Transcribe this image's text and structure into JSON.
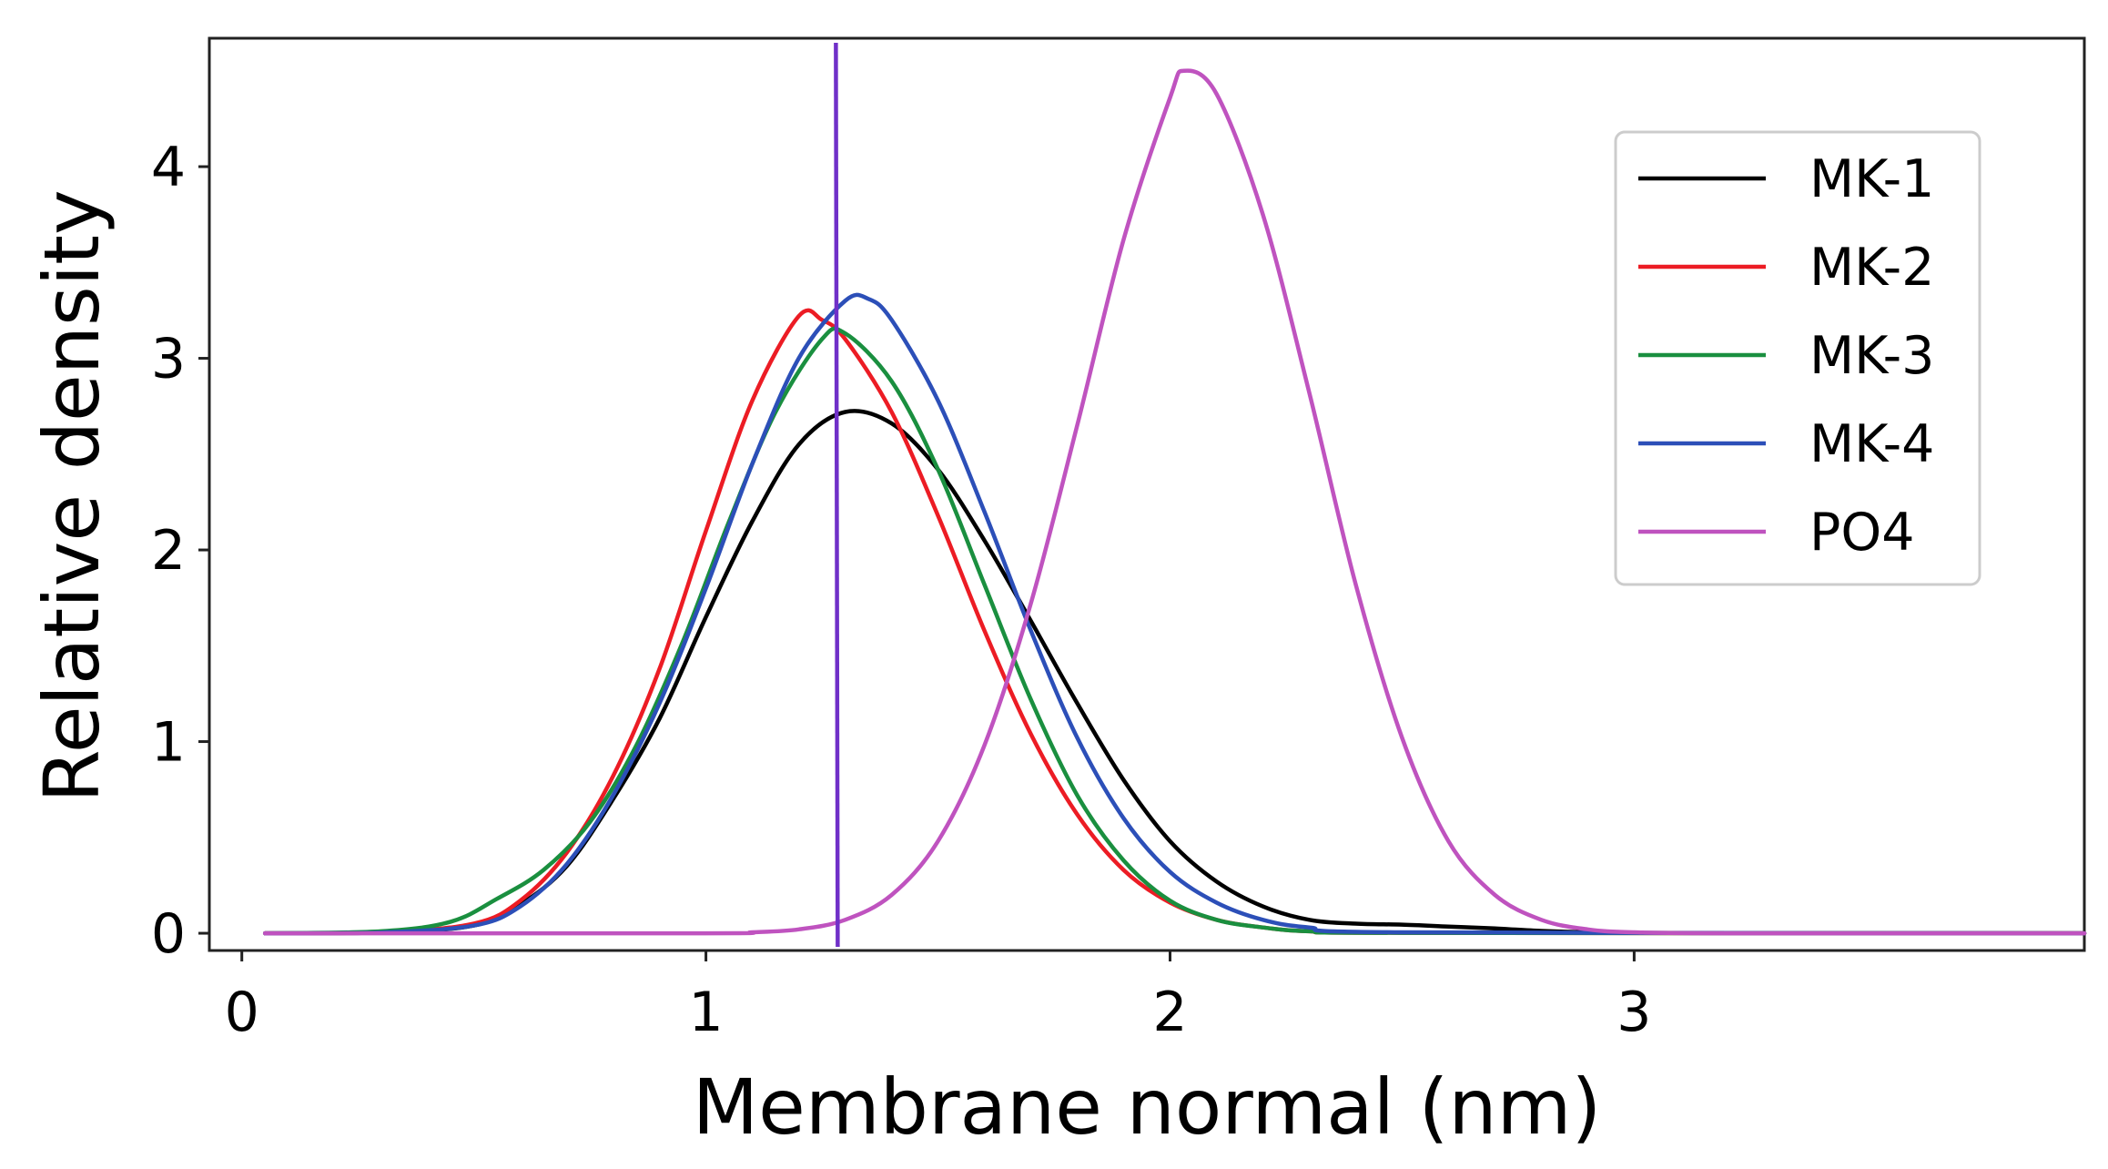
{
  "chart_data": {
    "type": "line",
    "title": "",
    "xlabel": "Membrane normal (nm)",
    "ylabel": "Relative density",
    "xlim": [
      -0.07,
      3.97
    ],
    "ylim": [
      -0.09,
      4.67
    ],
    "xticks": [
      0,
      1,
      2,
      3
    ],
    "xtick_labels": [
      "0",
      "1",
      "2",
      "3"
    ],
    "yticks": [
      0,
      1,
      2,
      3,
      4
    ],
    "ytick_labels": [
      "0",
      "1",
      "2",
      "3",
      "4"
    ],
    "grid": false,
    "legend_position": "top-right",
    "vline": {
      "x": 1.28,
      "color": "#7030c8"
    },
    "series": [
      {
        "name": "MK-1",
        "color": "#000000",
        "points": [
          [
            0.05,
            0
          ],
          [
            0.3,
            0.004
          ],
          [
            0.5,
            0.04
          ],
          [
            0.6,
            0.15
          ],
          [
            0.7,
            0.35
          ],
          [
            0.8,
            0.7
          ],
          [
            0.9,
            1.12
          ],
          [
            1.0,
            1.65
          ],
          [
            1.1,
            2.15
          ],
          [
            1.2,
            2.55
          ],
          [
            1.3,
            2.72
          ],
          [
            1.4,
            2.66
          ],
          [
            1.5,
            2.42
          ],
          [
            1.6,
            2.05
          ],
          [
            1.7,
            1.63
          ],
          [
            1.8,
            1.2
          ],
          [
            1.9,
            0.8
          ],
          [
            2.0,
            0.48
          ],
          [
            2.1,
            0.27
          ],
          [
            2.2,
            0.14
          ],
          [
            2.3,
            0.07
          ],
          [
            2.4,
            0.05
          ],
          [
            2.5,
            0.045
          ],
          [
            2.6,
            0.035
          ],
          [
            2.7,
            0.025
          ],
          [
            2.8,
            0.012
          ],
          [
            2.9,
            0.005
          ],
          [
            3.0,
            0.002
          ],
          [
            3.97,
            0
          ]
        ]
      },
      {
        "name": "MK-2",
        "color": "#ec1c24",
        "points": [
          [
            0.05,
            0
          ],
          [
            0.3,
            0.005
          ],
          [
            0.5,
            0.05
          ],
          [
            0.6,
            0.17
          ],
          [
            0.7,
            0.42
          ],
          [
            0.8,
            0.82
          ],
          [
            0.9,
            1.38
          ],
          [
            1.0,
            2.1
          ],
          [
            1.1,
            2.78
          ],
          [
            1.2,
            3.22
          ],
          [
            1.25,
            3.2
          ],
          [
            1.3,
            3.1
          ],
          [
            1.4,
            2.72
          ],
          [
            1.5,
            2.18
          ],
          [
            1.6,
            1.58
          ],
          [
            1.7,
            1.04
          ],
          [
            1.8,
            0.62
          ],
          [
            1.9,
            0.33
          ],
          [
            2.0,
            0.16
          ],
          [
            2.1,
            0.07
          ],
          [
            2.2,
            0.03
          ],
          [
            2.3,
            0.01
          ],
          [
            2.5,
            0.002
          ],
          [
            3.97,
            0
          ]
        ]
      },
      {
        "name": "MK-3",
        "color": "#1a8f3f",
        "points": [
          [
            0.05,
            0
          ],
          [
            0.3,
            0.01
          ],
          [
            0.45,
            0.06
          ],
          [
            0.55,
            0.18
          ],
          [
            0.65,
            0.33
          ],
          [
            0.75,
            0.58
          ],
          [
            0.85,
            0.98
          ],
          [
            0.95,
            1.52
          ],
          [
            1.05,
            2.15
          ],
          [
            1.15,
            2.72
          ],
          [
            1.25,
            3.1
          ],
          [
            1.3,
            3.13
          ],
          [
            1.4,
            2.88
          ],
          [
            1.5,
            2.42
          ],
          [
            1.6,
            1.82
          ],
          [
            1.7,
            1.22
          ],
          [
            1.8,
            0.72
          ],
          [
            1.9,
            0.38
          ],
          [
            2.0,
            0.17
          ],
          [
            2.1,
            0.07
          ],
          [
            2.2,
            0.03
          ],
          [
            2.3,
            0.01
          ],
          [
            2.5,
            0.002
          ],
          [
            3.97,
            0
          ]
        ]
      },
      {
        "name": "MK-4",
        "color": "#2c4fb8",
        "points": [
          [
            0.05,
            0
          ],
          [
            0.3,
            0.004
          ],
          [
            0.5,
            0.04
          ],
          [
            0.6,
            0.14
          ],
          [
            0.7,
            0.36
          ],
          [
            0.8,
            0.72
          ],
          [
            0.9,
            1.2
          ],
          [
            1.0,
            1.8
          ],
          [
            1.1,
            2.45
          ],
          [
            1.2,
            3.0
          ],
          [
            1.3,
            3.3
          ],
          [
            1.35,
            3.31
          ],
          [
            1.4,
            3.2
          ],
          [
            1.5,
            2.78
          ],
          [
            1.6,
            2.2
          ],
          [
            1.7,
            1.58
          ],
          [
            1.8,
            1.02
          ],
          [
            1.9,
            0.6
          ],
          [
            2.0,
            0.32
          ],
          [
            2.1,
            0.16
          ],
          [
            2.2,
            0.07
          ],
          [
            2.3,
            0.03
          ],
          [
            2.5,
            0.005
          ],
          [
            3.97,
            0
          ]
        ]
      },
      {
        "name": "PO4",
        "color": "#bf53bf",
        "points": [
          [
            0.05,
            0
          ],
          [
            1.0,
            0
          ],
          [
            1.1,
            0.005
          ],
          [
            1.2,
            0.02
          ],
          [
            1.3,
            0.07
          ],
          [
            1.4,
            0.2
          ],
          [
            1.5,
            0.48
          ],
          [
            1.6,
            0.98
          ],
          [
            1.7,
            1.72
          ],
          [
            1.8,
            2.65
          ],
          [
            1.9,
            3.62
          ],
          [
            2.0,
            4.36
          ],
          [
            2.03,
            4.5
          ],
          [
            2.1,
            4.38
          ],
          [
            2.2,
            3.75
          ],
          [
            2.3,
            2.82
          ],
          [
            2.4,
            1.82
          ],
          [
            2.5,
            1.02
          ],
          [
            2.6,
            0.48
          ],
          [
            2.7,
            0.2
          ],
          [
            2.8,
            0.07
          ],
          [
            2.9,
            0.02
          ],
          [
            3.0,
            0.005
          ],
          [
            3.2,
            0
          ],
          [
            3.97,
            0
          ]
        ]
      }
    ]
  }
}
